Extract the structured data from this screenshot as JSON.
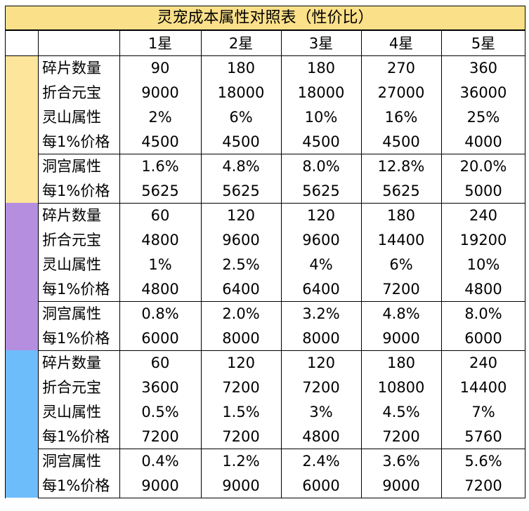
{
  "title": "灵宠成本属性对照表（性价比）",
  "stars": [
    "1星",
    "2星",
    "3星",
    "4星",
    "5星"
  ],
  "colors": {
    "tier1": "#fde59b",
    "tier2": "#b58ee0",
    "tier3": "#6ebdfb",
    "title_bg": "#fbe08a"
  },
  "tiers": [
    {
      "blocks": [
        {
          "rows": [
            {
              "label": "碎片数量",
              "values": [
                "90",
                "180",
                "180",
                "270",
                "360"
              ]
            },
            {
              "label": "折合元宝",
              "values": [
                "9000",
                "18000",
                "18000",
                "27000",
                "36000"
              ]
            },
            {
              "label": "灵山属性",
              "values": [
                "2%",
                "6%",
                "10%",
                "16%",
                "25%"
              ]
            },
            {
              "label": "每1%价格",
              "values": [
                "4500",
                "4500",
                "4500",
                "4500",
                "4000"
              ]
            }
          ]
        },
        {
          "rows": [
            {
              "label": "洞宫属性",
              "values": [
                "1.6%",
                "4.8%",
                "8.0%",
                "12.8%",
                "20.0%"
              ]
            },
            {
              "label": "每1%价格",
              "values": [
                "5625",
                "5625",
                "5625",
                "5625",
                "5000"
              ]
            }
          ]
        }
      ]
    },
    {
      "blocks": [
        {
          "rows": [
            {
              "label": "碎片数量",
              "values": [
                "60",
                "120",
                "120",
                "180",
                "240"
              ]
            },
            {
              "label": "折合元宝",
              "values": [
                "4800",
                "9600",
                "9600",
                "14400",
                "19200"
              ]
            },
            {
              "label": "灵山属性",
              "values": [
                "1%",
                "2.5%",
                "4%",
                "6%",
                "10%"
              ]
            },
            {
              "label": "每1%价格",
              "values": [
                "4800",
                "6400",
                "6400",
                "7200",
                "4800"
              ]
            }
          ]
        },
        {
          "rows": [
            {
              "label": "洞宫属性",
              "values": [
                "0.8%",
                "2.0%",
                "3.2%",
                "4.8%",
                "8.0%"
              ]
            },
            {
              "label": "每1%价格",
              "values": [
                "6000",
                "8000",
                "8000",
                "9000",
                "6000"
              ]
            }
          ]
        }
      ]
    },
    {
      "blocks": [
        {
          "rows": [
            {
              "label": "碎片数量",
              "values": [
                "60",
                "120",
                "120",
                "180",
                "240"
              ]
            },
            {
              "label": "折合元宝",
              "values": [
                "3600",
                "7200",
                "7200",
                "10800",
                "14400"
              ]
            },
            {
              "label": "灵山属性",
              "values": [
                "0.5%",
                "1.5%",
                "3%",
                "4.5%",
                "7%"
              ]
            },
            {
              "label": "每1%价格",
              "values": [
                "7200",
                "7200",
                "4800",
                "7200",
                "5760"
              ]
            }
          ]
        },
        {
          "rows": [
            {
              "label": "洞宫属性",
              "values": [
                "0.4%",
                "1.2%",
                "2.4%",
                "3.6%",
                "5.6%"
              ]
            },
            {
              "label": "每1%价格",
              "values": [
                "9000",
                "9000",
                "6000",
                "9000",
                "7200"
              ]
            }
          ]
        }
      ]
    }
  ]
}
